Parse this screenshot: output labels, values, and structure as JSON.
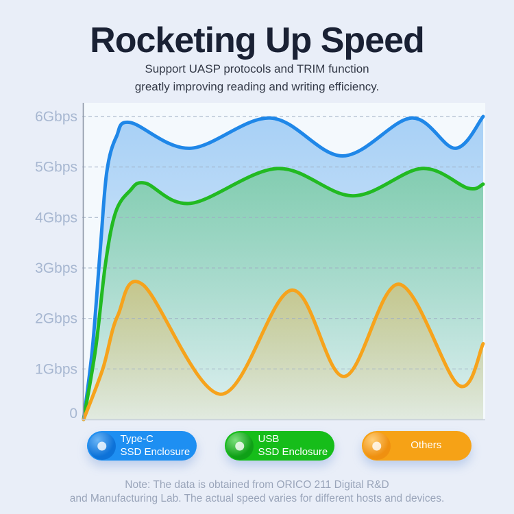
{
  "header": {
    "title": "Rocketing Up Speed",
    "subtitle_line1": "Support UASP protocols and TRIM function",
    "subtitle_line2": "greatly improving reading and writing efficiency."
  },
  "chart_data": {
    "type": "area",
    "title": "SSD enclosure speed comparison",
    "unit": "Gbps",
    "ylim": [
      0,
      6
    ],
    "yticks": [
      {
        "value": 6,
        "label": "6Gbps"
      },
      {
        "value": 5,
        "label": "5Gbps"
      },
      {
        "value": 4,
        "label": "4Gbps"
      },
      {
        "value": 3,
        "label": "3Gbps"
      },
      {
        "value": 2,
        "label": "2Gbps"
      },
      {
        "value": 1,
        "label": "1Gbps"
      },
      {
        "value": 0,
        "label": "0"
      }
    ],
    "grid": "dashed horizontal gridlines at 1-6 Gbps",
    "legend_position": "bottom",
    "x_axis": "normalized time 0-1, no tick labels",
    "series": [
      {
        "id": "type-c",
        "name": "Type-C SSD Enclosure",
        "color": "#1f87e8",
        "points": [
          [
            0,
            0
          ],
          [
            0.022,
            1.4
          ],
          [
            0.042,
            3.4
          ],
          [
            0.058,
            4.9
          ],
          [
            0.082,
            5.6
          ],
          [
            0.117,
            5.88
          ],
          [
            0.266,
            5.37
          ],
          [
            0.468,
            5.97
          ],
          [
            0.648,
            5.22
          ],
          [
            0.82,
            5.97
          ],
          [
            0.93,
            5.37
          ],
          [
            1.0,
            6.0
          ]
        ]
      },
      {
        "id": "usb",
        "name": "USB SSD Enclosure",
        "color": "#22ba22",
        "points": [
          [
            0,
            0
          ],
          [
            0.03,
            1.4
          ],
          [
            0.055,
            3.1
          ],
          [
            0.08,
            4.1
          ],
          [
            0.115,
            4.52
          ],
          [
            0.154,
            4.68
          ],
          [
            0.268,
            4.28
          ],
          [
            0.485,
            4.97
          ],
          [
            0.674,
            4.43
          ],
          [
            0.846,
            4.97
          ],
          [
            0.962,
            4.58
          ],
          [
            1.0,
            4.66
          ]
        ]
      },
      {
        "id": "others",
        "name": "Others",
        "color": "#f6a31c",
        "points": [
          [
            0,
            0
          ],
          [
            0.048,
            1.0
          ],
          [
            0.085,
            2.05
          ],
          [
            0.148,
            2.67
          ],
          [
            0.343,
            0.5
          ],
          [
            0.52,
            2.56
          ],
          [
            0.652,
            0.85
          ],
          [
            0.789,
            2.68
          ],
          [
            0.938,
            0.68
          ],
          [
            1.0,
            1.5
          ]
        ]
      }
    ]
  },
  "legend": [
    {
      "line1": "Type-C",
      "line2": "SSD Enclosure",
      "pill": "#1e8ff2",
      "sphere_base": "#0d72d8",
      "sphere_light": "#6ab5f7"
    },
    {
      "line1": "USB",
      "line2": "SSD Enclosure",
      "pill": "#16bd1a",
      "sphere_base": "#0fa017",
      "sphere_light": "#7ce07d"
    },
    {
      "line1": "Others",
      "line2": "",
      "pill": "#f6a216",
      "sphere_base": "#ef9010",
      "sphere_light": "#ffce78"
    }
  ],
  "footnote": {
    "line1": "Note: The data is obtained from ORICO 211 Digital R&D",
    "line2": "and Manufacturing Lab. The actual speed varies for different hosts and devices."
  }
}
